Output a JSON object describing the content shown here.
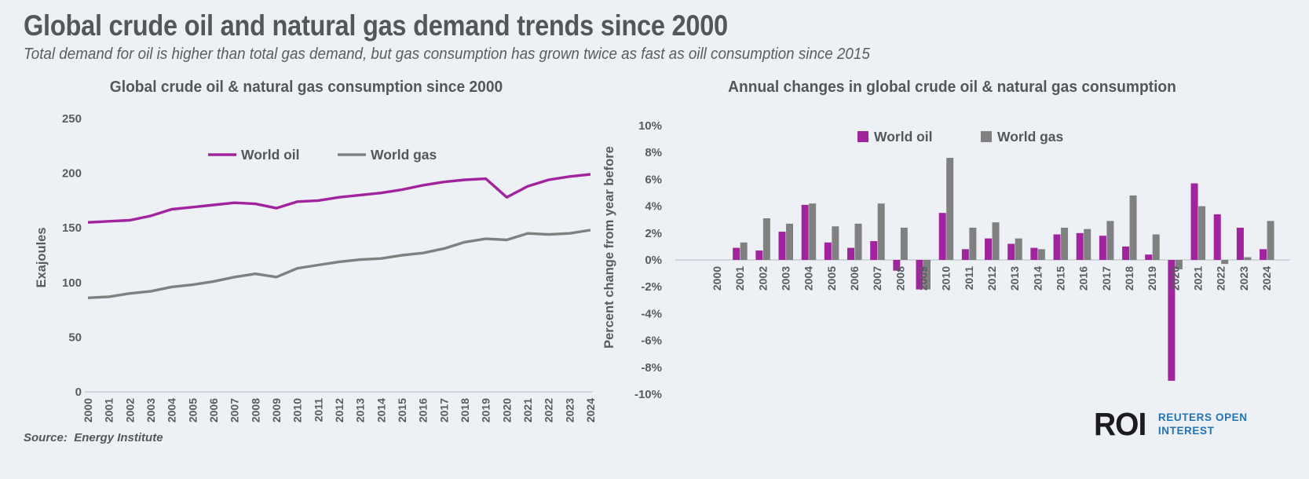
{
  "page": {
    "title": "Global crude oil and natural gas demand trends since 2000",
    "subtitle": "Total demand for oil is higher than total gas demand, but gas consumption has grown twice as fast as oill consumption since 2015",
    "source_label": "Source:",
    "source_value": "Energy Institute"
  },
  "logo": {
    "abbrev": "ROI",
    "name_line1": "REUTERS OPEN",
    "name_line2": "INTEREST"
  },
  "colors": {
    "background": "#edf1f6",
    "oil": "#a2239e",
    "gas": "#808080",
    "text": "#54575a",
    "tick_text": "#595c5f",
    "axis_line": "#c8cdd4",
    "logo_dark": "#1c1c1e",
    "logo_blue": "#2173b8"
  },
  "chart_data": [
    {
      "id": "consumption-line-chart",
      "type": "line",
      "title": "Global crude oil & natural gas consumption since 2000",
      "ylabel": "Exajoules",
      "ylim": [
        0,
        250
      ],
      "yticks": [
        250,
        200,
        150,
        100,
        50,
        0
      ],
      "ytick_suffix": "",
      "grid": false,
      "legend_position": "top-center",
      "categories": [
        "2000",
        "2001",
        "2002",
        "2003",
        "2004",
        "2005",
        "2006",
        "2007",
        "2008",
        "2009",
        "2010",
        "2011",
        "2012",
        "2013",
        "2014",
        "2015",
        "2016",
        "2017",
        "2018",
        "2019",
        "2020",
        "2021",
        "2022",
        "2023",
        "2024"
      ],
      "series": [
        {
          "name": "World oil",
          "color_key": "oil",
          "values": [
            155,
            156,
            157,
            161,
            167,
            169,
            171,
            173,
            172,
            168,
            174,
            175,
            178,
            180,
            182,
            185,
            189,
            192,
            194,
            195,
            178,
            188,
            194,
            197,
            199
          ]
        },
        {
          "name": "World gas",
          "color_key": "gas",
          "values": [
            86,
            87,
            90,
            92,
            96,
            98,
            101,
            105,
            108,
            105,
            113,
            116,
            119,
            121,
            122,
            125,
            127,
            131,
            137,
            140,
            139,
            145,
            144,
            145,
            148
          ]
        }
      ]
    },
    {
      "id": "annual-change-bar-chart",
      "type": "bar",
      "title": "Annual changes in global crude oil & natural gas consumption",
      "ylabel": "Percent change from year before",
      "ylim": [
        -10,
        10
      ],
      "yticks": [
        10,
        8,
        6,
        4,
        2,
        0,
        -2,
        -4,
        -6,
        -8,
        -10
      ],
      "ytick_suffix": "%",
      "grid": false,
      "legend_position": "top-center",
      "categories": [
        "2000",
        "2001",
        "2002",
        "2003",
        "2004",
        "2005",
        "2006",
        "2007",
        "2008",
        "2009",
        "2010",
        "2011",
        "2012",
        "2013",
        "2014",
        "2015",
        "2016",
        "2017",
        "2018",
        "2019",
        "2020",
        "2021",
        "2022",
        "2023",
        "2024"
      ],
      "series": [
        {
          "name": "World oil",
          "color_key": "oil",
          "values": [
            null,
            0.9,
            0.7,
            2.1,
            4.1,
            1.3,
            0.9,
            1.4,
            -0.8,
            -2.2,
            3.5,
            0.8,
            1.6,
            1.2,
            0.9,
            1.9,
            2.0,
            1.8,
            1.0,
            0.4,
            -9.0,
            5.7,
            3.4,
            2.4,
            0.8
          ]
        },
        {
          "name": "World gas",
          "color_key": "gas",
          "values": [
            null,
            1.3,
            3.1,
            2.7,
            4.2,
            2.5,
            2.7,
            4.2,
            2.4,
            -2.2,
            7.6,
            2.4,
            2.8,
            1.6,
            0.8,
            2.4,
            2.3,
            2.9,
            4.8,
            1.9,
            -0.7,
            4.0,
            -0.3,
            0.2,
            2.9
          ]
        }
      ]
    }
  ]
}
